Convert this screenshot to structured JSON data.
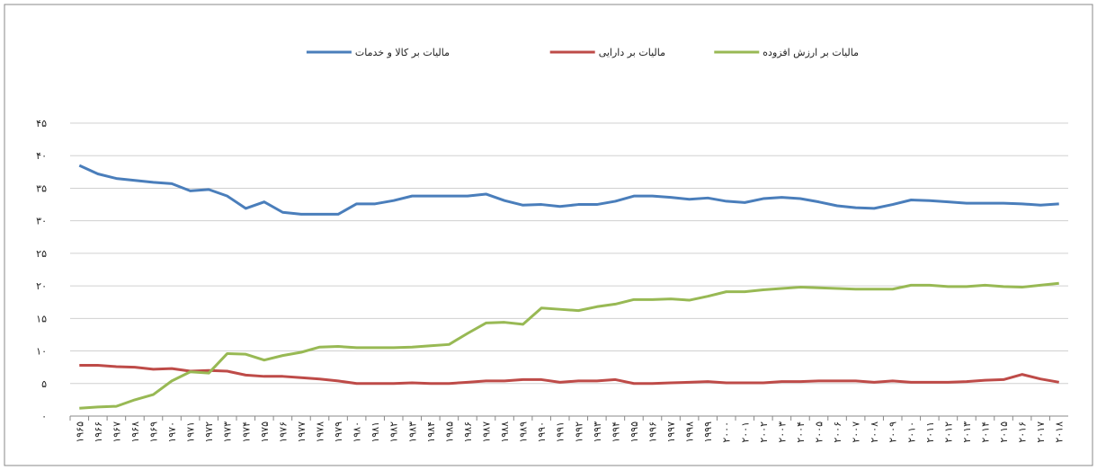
{
  "chart_data": {
    "type": "line",
    "categories": [
      "۱۹۶۵",
      "۱۹۶۶",
      "۱۹۶۷",
      "۱۹۶۸",
      "۱۹۶۹",
      "۱۹۷۰",
      "۱۹۷۱",
      "۱۹۷۲",
      "۱۹۷۳",
      "۱۹۷۴",
      "۱۹۷۵",
      "۱۹۷۶",
      "۱۹۷۷",
      "۱۹۷۸",
      "۱۹۷۹",
      "۱۹۸۰",
      "۱۹۸۱",
      "۱۹۸۲",
      "۱۹۸۳",
      "۱۹۸۴",
      "۱۹۸۵",
      "۱۹۸۶",
      "۱۹۸۷",
      "۱۹۸۸",
      "۱۹۸۹",
      "۱۹۹۰",
      "۱۹۹۱",
      "۱۹۹۲",
      "۱۹۹۳",
      "۱۹۹۴",
      "۱۹۹۵",
      "۱۹۹۶",
      "۱۹۹۷",
      "۱۹۹۸",
      "۱۹۹۹",
      "۲۰۰۰",
      "۲۰۰۱",
      "۲۰۰۲",
      "۲۰۰۳",
      "۲۰۰۴",
      "۲۰۰۵",
      "۲۰۰۶",
      "۲۰۰۷",
      "۲۰۰۸",
      "۲۰۰۹",
      "۲۰۱۰",
      "۲۰۱۱",
      "۲۰۱۲",
      "۲۰۱۳",
      "۲۰۱۴",
      "۲۰۱۵",
      "۲۰۱۶",
      "۲۰۱۷",
      "۲۰۱۸"
    ],
    "series": [
      {
        "name": "مالیات بر کالا و خدمات",
        "color": "#4a7ebb",
        "values": [
          38.5,
          37.2,
          36.5,
          36.2,
          35.9,
          35.7,
          34.6,
          34.8,
          33.8,
          31.9,
          32.9,
          31.3,
          31.0,
          31.0,
          31.0,
          32.6,
          32.6,
          33.1,
          33.8,
          33.8,
          33.8,
          33.8,
          34.1,
          33.1,
          32.4,
          32.5,
          32.2,
          32.5,
          32.5,
          33.0,
          33.8,
          33.8,
          33.6,
          33.3,
          33.5,
          33.0,
          32.8,
          33.4,
          33.6,
          33.4,
          32.9,
          32.3,
          32.0,
          31.9,
          32.5,
          33.2,
          33.1,
          32.9,
          32.7,
          32.7,
          32.7,
          32.6,
          32.4,
          32.6
        ]
      },
      {
        "name": "مالیات بر دارایی",
        "color": "#be4b48",
        "values": [
          7.8,
          7.8,
          7.6,
          7.5,
          7.2,
          7.3,
          6.9,
          7.0,
          6.9,
          6.3,
          6.1,
          6.1,
          5.9,
          5.7,
          5.4,
          5.0,
          5.0,
          5.0,
          5.1,
          5.0,
          5.0,
          5.2,
          5.4,
          5.4,
          5.6,
          5.6,
          5.2,
          5.4,
          5.4,
          5.6,
          5.0,
          5.0,
          5.1,
          5.2,
          5.3,
          5.1,
          5.1,
          5.1,
          5.3,
          5.3,
          5.4,
          5.4,
          5.4,
          5.2,
          5.4,
          5.2,
          5.2,
          5.2,
          5.3,
          5.5,
          5.6,
          6.4,
          5.7,
          5.2
        ]
      },
      {
        "name": "مالیات بر ارزش افزوده",
        "color": "#98b954",
        "values": [
          1.2,
          1.4,
          1.5,
          2.5,
          3.3,
          5.4,
          6.8,
          6.6,
          9.6,
          9.5,
          8.6,
          9.3,
          9.8,
          10.6,
          10.7,
          10.5,
          10.5,
          10.5,
          10.6,
          10.8,
          11.0,
          12.7,
          14.3,
          14.4,
          14.1,
          16.6,
          16.4,
          16.2,
          16.8,
          17.2,
          17.9,
          17.9,
          18.0,
          17.8,
          18.4,
          19.1,
          19.1,
          19.4,
          19.6,
          19.8,
          19.7,
          19.6,
          19.5,
          19.5,
          19.5,
          20.1,
          20.1,
          19.9,
          19.9,
          20.1,
          19.9,
          19.8,
          20.1,
          20.4
        ]
      }
    ],
    "ylim": [
      0,
      45
    ],
    "yticks": [
      {
        "value": 0,
        "label": "۰"
      },
      {
        "value": 5,
        "label": "۵"
      },
      {
        "value": 10,
        "label": "۱۰"
      },
      {
        "value": 15,
        "label": "۱۵"
      },
      {
        "value": 20,
        "label": "۲۰"
      },
      {
        "value": 25,
        "label": "۲۵"
      },
      {
        "value": 30,
        "label": "۳۰"
      },
      {
        "value": 35,
        "label": "۳۵"
      },
      {
        "value": 40,
        "label": "۴۰"
      },
      {
        "value": 45,
        "label": "۴۵"
      }
    ],
    "grid": true,
    "legend": "top"
  }
}
